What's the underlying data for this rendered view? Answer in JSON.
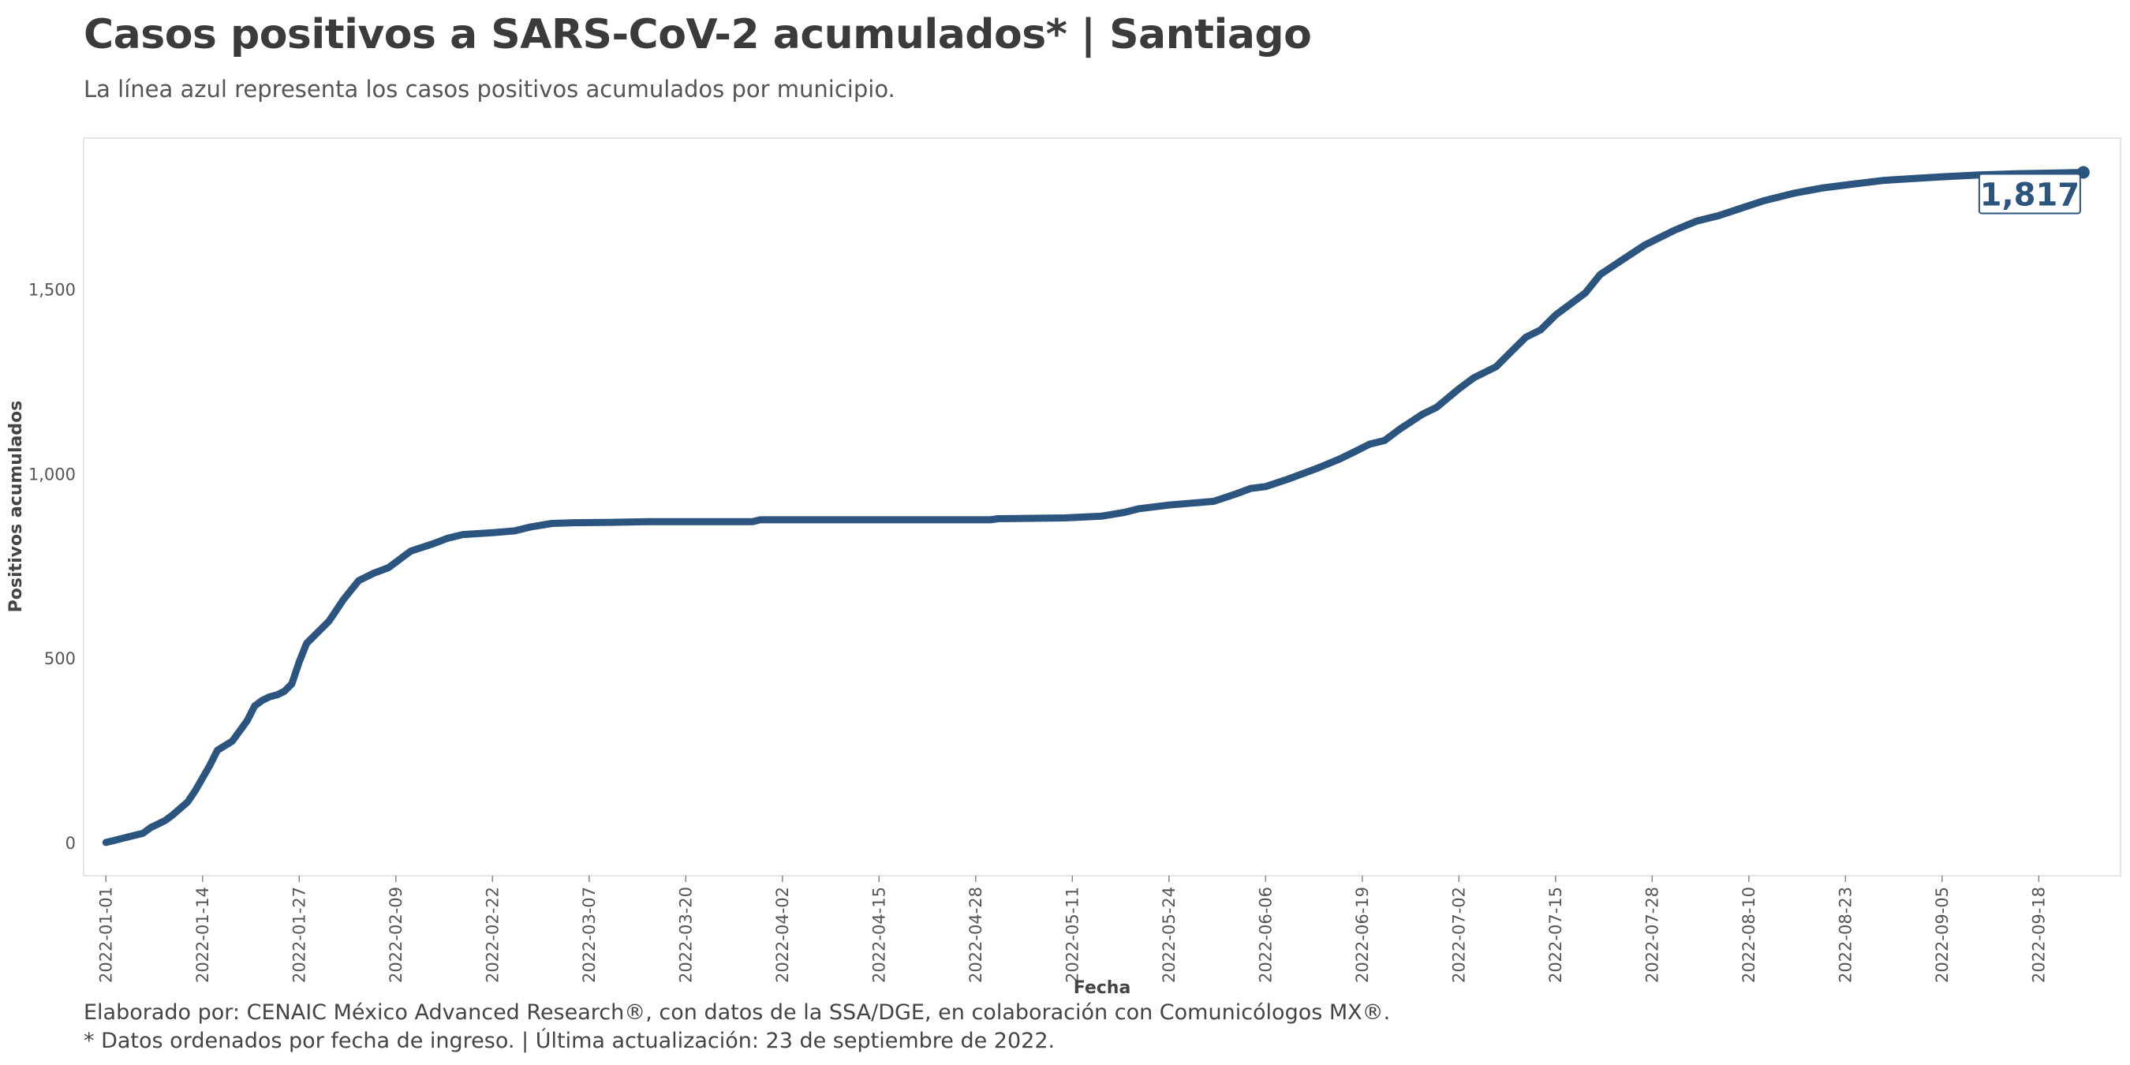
{
  "title": "Casos positivos a SARS-CoV-2 acumulados* | Santiago",
  "subtitle": "La línea azul representa los casos positivos acumulados por municipio.",
  "caption": {
    "line1": "Elaborado por: CENAIC México Advanced Research®, con datos de la SSA/DGE, en colaboración con Comunicólogos MX®.",
    "line2": "* Datos ordenados por fecha de ingreso. | Última actualización: 23 de septiembre de 2022."
  },
  "colors": {
    "line": "#2b557f",
    "label_text": "#2b557f",
    "axis_text": "#555555",
    "panel_border": "#e6e6e6"
  },
  "chart_data": {
    "type": "line",
    "xlabel": "Fecha",
    "ylabel": "Positivos acumulados",
    "x_ticks": [
      "2022-01-01",
      "2022-01-14",
      "2022-01-27",
      "2022-02-09",
      "2022-02-22",
      "2022-03-07",
      "2022-03-20",
      "2022-04-02",
      "2022-04-15",
      "2022-04-28",
      "2022-05-11",
      "2022-05-24",
      "2022-06-06",
      "2022-06-19",
      "2022-07-02",
      "2022-07-15",
      "2022-07-28",
      "2022-08-10",
      "2022-08-23",
      "2022-09-05",
      "2022-09-18"
    ],
    "y_ticks": [
      0,
      500,
      1000,
      1500
    ],
    "y_tick_labels": [
      "0",
      "500",
      "1,000",
      "1,500"
    ],
    "xlim": [
      "2021-12-29",
      "2022-09-29"
    ],
    "ylim": [
      -90,
      1910
    ],
    "grid": false,
    "end_label": "1,817",
    "series": [
      {
        "x": [
          "2022-01-01",
          "2022-01-02",
          "2022-01-04",
          "2022-01-06",
          "2022-01-07",
          "2022-01-09",
          "2022-01-10",
          "2022-01-12",
          "2022-01-13",
          "2022-01-15",
          "2022-01-16",
          "2022-01-18",
          "2022-01-20",
          "2022-01-21",
          "2022-01-22",
          "2022-01-23",
          "2022-01-24",
          "2022-01-25",
          "2022-01-26",
          "2022-01-27",
          "2022-01-28",
          "2022-01-30",
          "2022-01-31",
          "2022-02-02",
          "2022-02-04",
          "2022-02-06",
          "2022-02-08",
          "2022-02-09",
          "2022-02-11",
          "2022-02-14",
          "2022-02-16",
          "2022-02-18",
          "2022-02-22",
          "2022-02-25",
          "2022-02-27",
          "2022-03-02",
          "2022-03-05",
          "2022-03-10",
          "2022-03-15",
          "2022-03-20",
          "2022-03-29",
          "2022-03-30",
          "2022-04-10",
          "2022-04-20",
          "2022-04-30",
          "2022-05-01",
          "2022-05-10",
          "2022-05-15",
          "2022-05-18",
          "2022-05-20",
          "2022-05-24",
          "2022-05-27",
          "2022-05-30",
          "2022-06-02",
          "2022-06-04",
          "2022-06-06",
          "2022-06-09",
          "2022-06-11",
          "2022-06-13",
          "2022-06-16",
          "2022-06-18",
          "2022-06-20",
          "2022-06-22",
          "2022-06-24",
          "2022-06-27",
          "2022-06-29",
          "2022-07-02",
          "2022-07-04",
          "2022-07-07",
          "2022-07-09",
          "2022-07-11",
          "2022-07-13",
          "2022-07-15",
          "2022-07-17",
          "2022-07-19",
          "2022-07-21",
          "2022-07-24",
          "2022-07-27",
          "2022-07-29",
          "2022-07-31",
          "2022-08-03",
          "2022-08-06",
          "2022-08-09",
          "2022-08-12",
          "2022-08-16",
          "2022-08-20",
          "2022-08-24",
          "2022-08-28",
          "2022-09-01",
          "2022-09-05",
          "2022-09-10",
          "2022-09-15",
          "2022-09-20",
          "2022-09-24"
        ],
        "values": [
          0,
          5,
          15,
          25,
          40,
          60,
          75,
          110,
          140,
          210,
          250,
          275,
          330,
          370,
          385,
          395,
          400,
          410,
          430,
          490,
          540,
          580,
          600,
          660,
          710,
          730,
          745,
          760,
          790,
          810,
          825,
          835,
          840,
          845,
          855,
          865,
          867,
          868,
          870,
          870,
          870,
          875,
          875,
          875,
          875,
          878,
          880,
          885,
          895,
          905,
          915,
          920,
          925,
          945,
          960,
          965,
          985,
          1000,
          1015,
          1040,
          1060,
          1080,
          1090,
          1120,
          1160,
          1180,
          1230,
          1260,
          1290,
          1330,
          1370,
          1390,
          1430,
          1460,
          1490,
          1540,
          1580,
          1620,
          1640,
          1660,
          1685,
          1700,
          1720,
          1740,
          1760,
          1775,
          1785,
          1795,
          1800,
          1805,
          1810,
          1813,
          1815,
          1817
        ]
      }
    ]
  }
}
